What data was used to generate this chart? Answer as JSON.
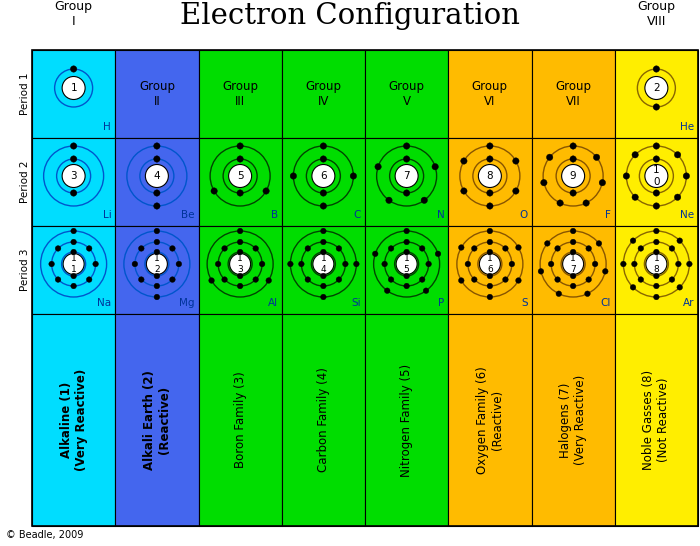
{
  "title": "Electron Configuration",
  "col_colors": [
    "#00ddff",
    "#4466ee",
    "#00dd00",
    "#00dd00",
    "#00dd00",
    "#ffbb00",
    "#ffbb00",
    "#ffee00"
  ],
  "family_labels": [
    "Alkaline (1)\n(Very Reactive)",
    "Alkali Earth (2)\n(Reactive)",
    "Boron Family (3)",
    "Carbon Family (4)",
    "Nitrogen Family (5)",
    "Oxygen Family (6)\n(Reactive)",
    "Halogens (7)\n(Very Reactive)",
    "Noble Gasses (8)\n(Not Reactive)"
  ],
  "family_bold": [
    true,
    true,
    false,
    false,
    false,
    false,
    false,
    false
  ],
  "family_text_colors": [
    "#000000",
    "#000000",
    "#000000",
    "#000000",
    "#000000",
    "#000000",
    "#000000",
    "#000000"
  ],
  "elements": [
    {
      "symbol": "H",
      "atomic": "1",
      "period": 1,
      "group": 1,
      "shells": [
        1
      ]
    },
    {
      "symbol": "He",
      "atomic": "2",
      "period": 1,
      "group": 8,
      "shells": [
        2
      ]
    },
    {
      "symbol": "Li",
      "atomic": "3",
      "period": 2,
      "group": 1,
      "shells": [
        2,
        1
      ]
    },
    {
      "symbol": "Be",
      "atomic": "4",
      "period": 2,
      "group": 2,
      "shells": [
        2,
        2
      ]
    },
    {
      "symbol": "B",
      "atomic": "5",
      "period": 2,
      "group": 3,
      "shells": [
        2,
        3
      ]
    },
    {
      "symbol": "C",
      "atomic": "6",
      "period": 2,
      "group": 4,
      "shells": [
        2,
        4
      ]
    },
    {
      "symbol": "N",
      "atomic": "7",
      "period": 2,
      "group": 5,
      "shells": [
        2,
        5
      ]
    },
    {
      "symbol": "O",
      "atomic": "8",
      "period": 2,
      "group": 6,
      "shells": [
        2,
        6
      ]
    },
    {
      "symbol": "F",
      "atomic": "9",
      "period": 2,
      "group": 7,
      "shells": [
        2,
        7
      ]
    },
    {
      "symbol": "Ne",
      "atomic": "10",
      "period": 2,
      "group": 8,
      "shells": [
        2,
        8
      ]
    },
    {
      "symbol": "Na",
      "atomic": "11",
      "period": 3,
      "group": 1,
      "shells": [
        2,
        8,
        1
      ]
    },
    {
      "symbol": "Mg",
      "atomic": "12",
      "period": 3,
      "group": 2,
      "shells": [
        2,
        8,
        2
      ]
    },
    {
      "symbol": "Al",
      "atomic": "13",
      "period": 3,
      "group": 3,
      "shells": [
        2,
        8,
        3
      ]
    },
    {
      "symbol": "Si",
      "atomic": "14",
      "period": 3,
      "group": 4,
      "shells": [
        2,
        8,
        4
      ]
    },
    {
      "symbol": "P",
      "atomic": "15",
      "period": 3,
      "group": 5,
      "shells": [
        2,
        8,
        5
      ]
    },
    {
      "symbol": "S",
      "atomic": "16",
      "period": 3,
      "group": 6,
      "shells": [
        2,
        8,
        6
      ]
    },
    {
      "symbol": "Cl",
      "atomic": "17",
      "period": 3,
      "group": 7,
      "shells": [
        2,
        8,
        7
      ]
    },
    {
      "symbol": "Ar",
      "atomic": "18",
      "period": 3,
      "group": 8,
      "shells": [
        2,
        8,
        8
      ]
    }
  ],
  "nucleus_labels": {
    "Na": "1\n1",
    "Mg": "1\n2",
    "Al": "1\n3",
    "Si": "1\n4",
    "P": "1\n5",
    "S": "1\n6",
    "Cl": "1\n7",
    "Ar": "1\n8",
    "Ne": "1\n0"
  },
  "orbit_colors": {
    "1": "#0055cc",
    "2": "#0055cc",
    "3": "#004400",
    "4": "#004400",
    "5": "#004400",
    "6": "#885500",
    "7": "#885500",
    "8": "#886600"
  }
}
